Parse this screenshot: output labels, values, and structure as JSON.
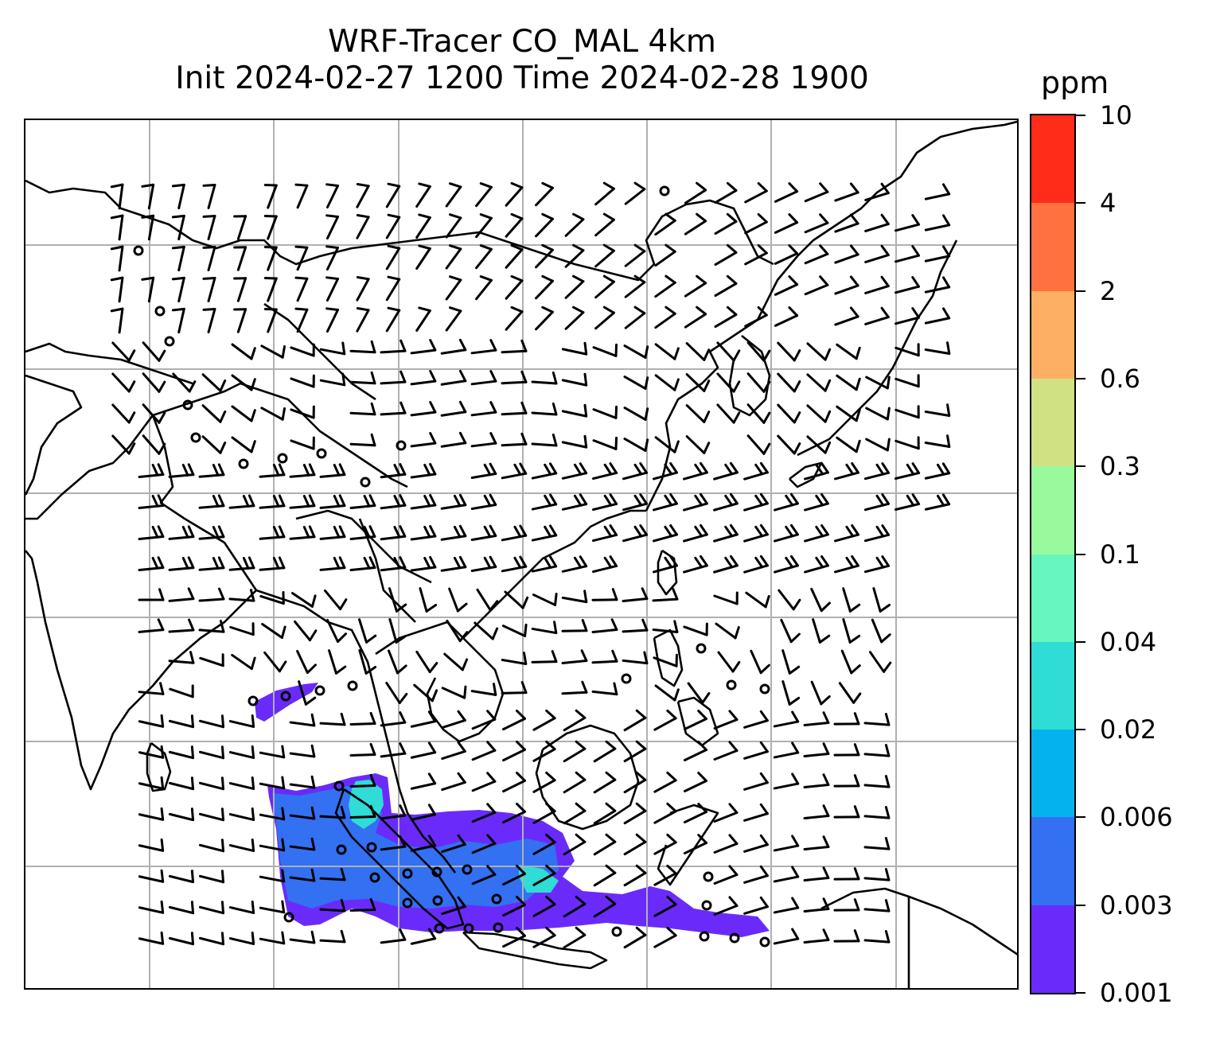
{
  "title": {
    "line1": "WRF-Tracer CO_MAL 4km",
    "line2": "Init 2024-02-27 1200 Time 2024-02-28 1900"
  },
  "colorbar": {
    "unit": "ppm",
    "ticks": [
      "0.001",
      "0.003",
      "0.006",
      "0.02",
      "0.04",
      "0.1",
      "0.3",
      "0.6",
      "2",
      "4",
      "10"
    ],
    "colors": [
      "#6a2bfa",
      "#3370f2",
      "#04b3ee",
      "#2fdcd6",
      "#66f6bf",
      "#99fa9d",
      "#d0e184",
      "#fdb064",
      "#ff7240",
      "#fe2c19"
    ]
  },
  "map": {
    "gridlines": true,
    "features": [
      "coastlines",
      "country-borders",
      "wind-barbs",
      "co-tracer-plume"
    ],
    "plume_colors": {
      "low": "#6a2bfa",
      "mid": "#3370f2",
      "high": "#2fdcd6"
    }
  }
}
